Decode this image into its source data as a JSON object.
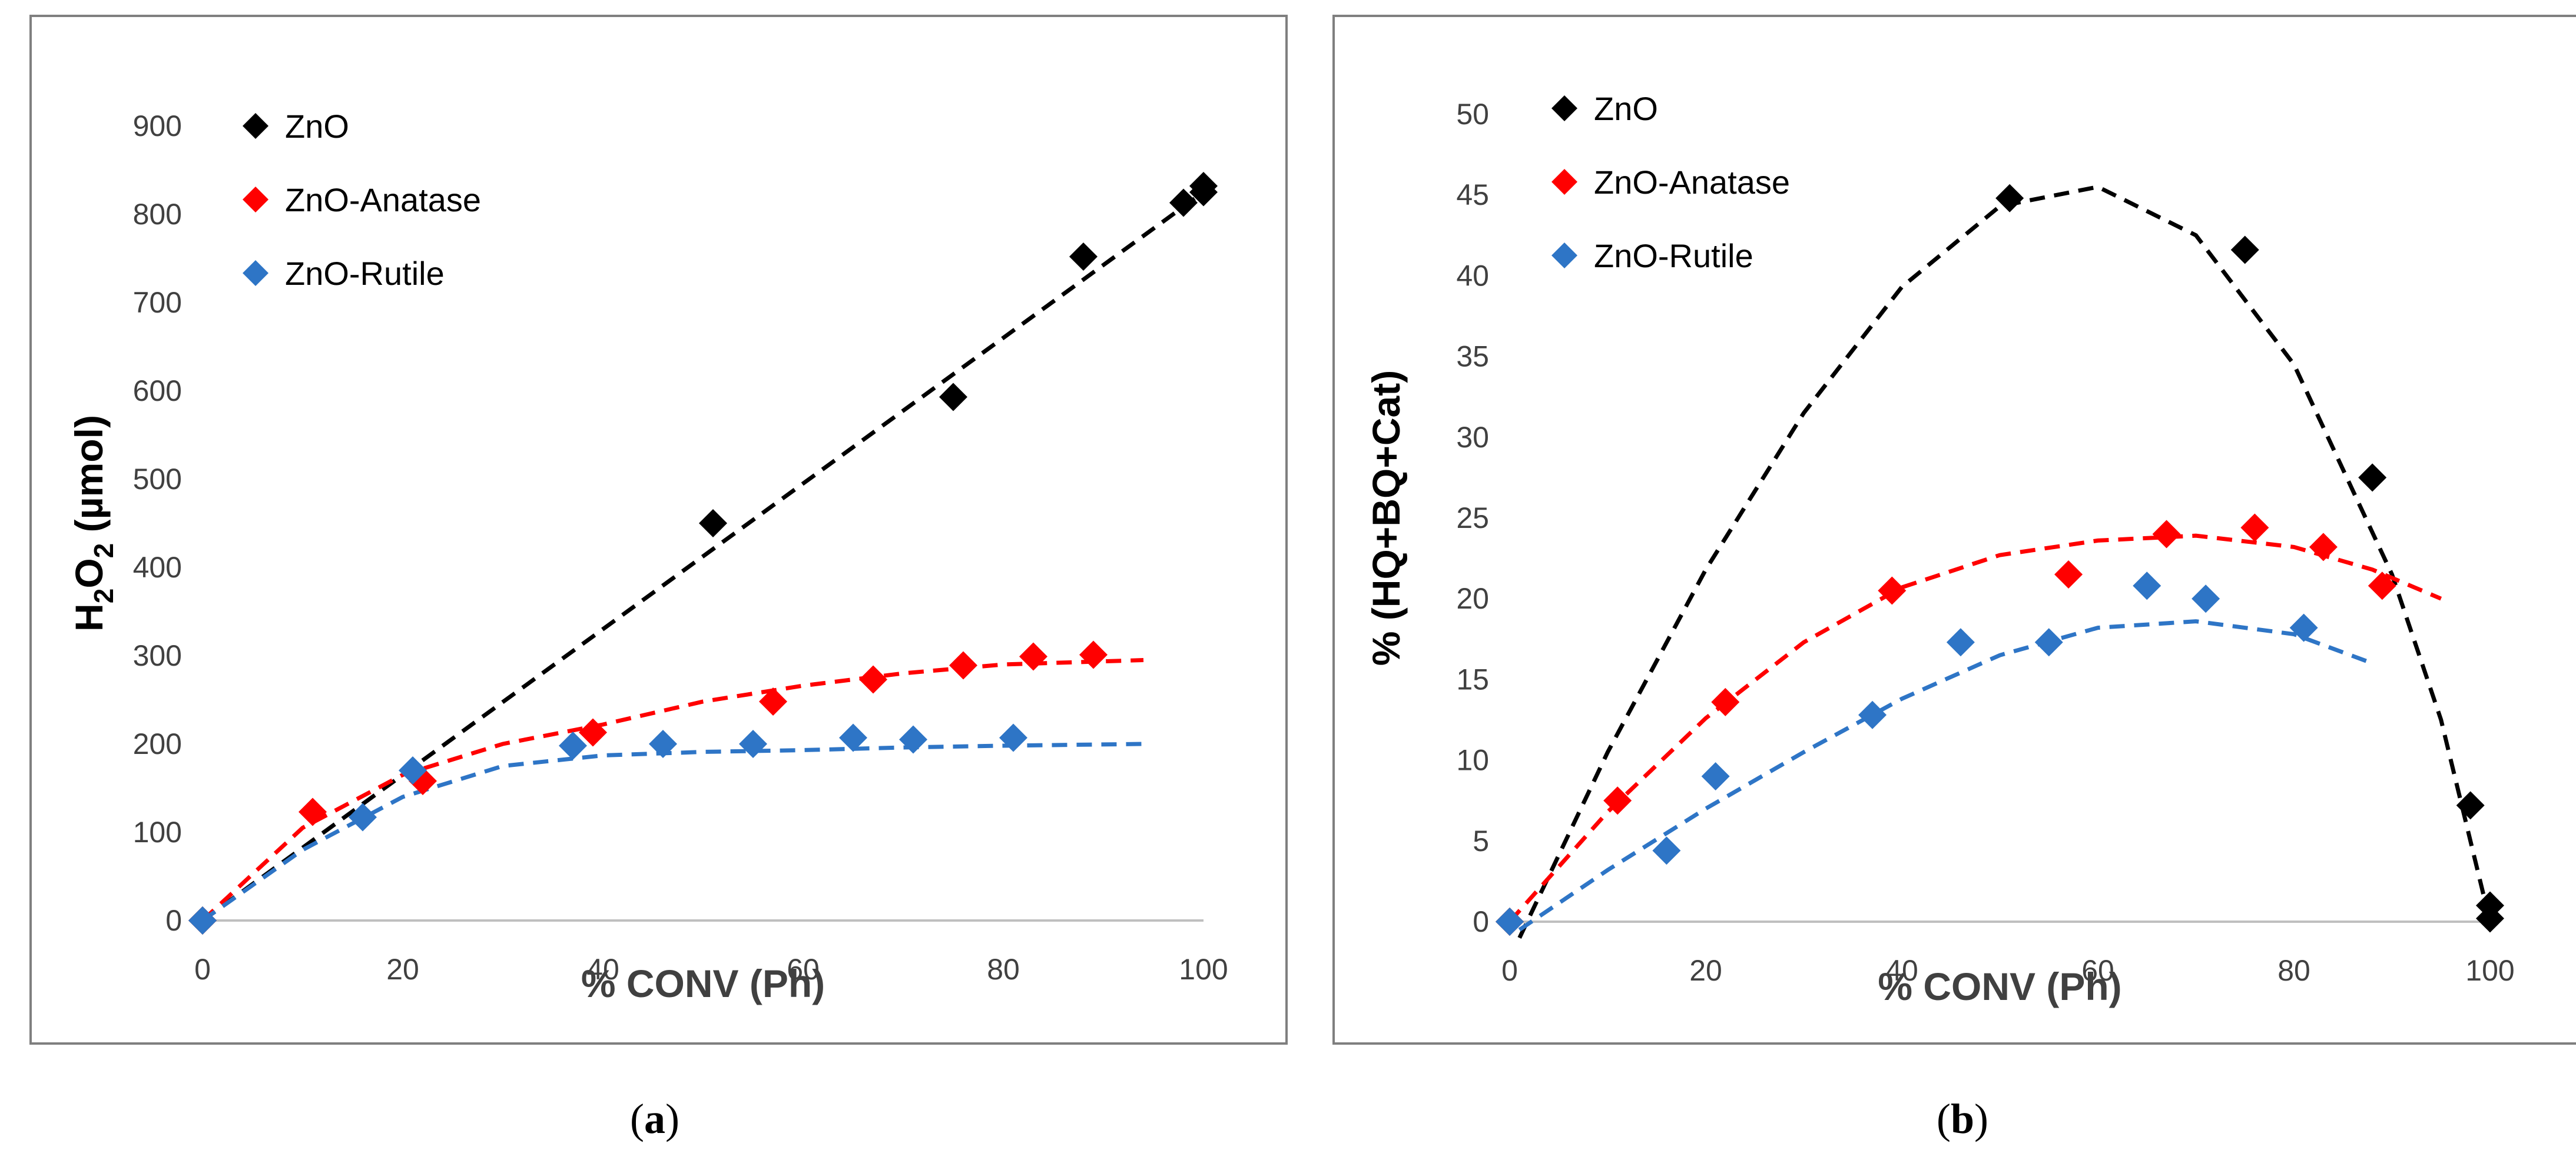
{
  "chart_data": [
    {
      "type": "scatter",
      "panel_label": "a",
      "xlabel": "% CONV (Ph)",
      "ylabel_main": "H",
      "ylabel_sub1": "2",
      "ylabel_mid": "O",
      "ylabel_sub2": "2",
      "ylabel_tail": " (µmol)",
      "xlim": [
        0,
        100
      ],
      "ylim": [
        0,
        900
      ],
      "x_ticks": [
        0,
        20,
        40,
        60,
        80,
        100
      ],
      "y_ticks": [
        0,
        100,
        200,
        300,
        400,
        500,
        600,
        700,
        800,
        900
      ],
      "legend_position": "top-left",
      "grid": false,
      "series": [
        {
          "name": "ZnO",
          "color": "#000000",
          "x": [
            0,
            51,
            75,
            88,
            98,
            100,
            100
          ],
          "y": [
            0,
            450,
            593,
            752,
            813,
            825,
            832
          ],
          "trend": {
            "x": [
              0,
              100
            ],
            "y": [
              0,
              825
            ]
          }
        },
        {
          "name": "ZnO-Anatase",
          "color": "#ff0000",
          "x": [
            0,
            11,
            22,
            39,
            57,
            67,
            76,
            83,
            89
          ],
          "y": [
            0,
            123,
            158,
            213,
            248,
            273,
            289,
            299,
            301
          ],
          "trend": {
            "x": [
              0,
              10,
              20,
              30,
              40,
              50,
              60,
              70,
              80,
              94
            ],
            "y": [
              0,
              105,
              165,
              200,
              222,
              248,
              266,
              280,
              290,
              295
            ]
          }
        },
        {
          "name": "ZnO-Rutile",
          "color": "#2e75c6",
          "x": [
            0,
            16,
            21,
            37,
            46,
            55,
            65,
            71,
            81
          ],
          "y": [
            0,
            117,
            170,
            198,
            200,
            200,
            207,
            205,
            207
          ],
          "trend": {
            "x": [
              0,
              10,
              20,
              30,
              40,
              50,
              60,
              70,
              80,
              94
            ],
            "y": [
              0,
              80,
              140,
              175,
              187,
              191,
              193,
              196,
              198,
              200
            ]
          }
        }
      ]
    },
    {
      "type": "scatter",
      "panel_label": "b",
      "xlabel": "% CONV (Ph)",
      "ylabel": "% (HQ+BQ+Cat)",
      "xlim": [
        0,
        100
      ],
      "ylim": [
        0,
        50
      ],
      "x_ticks": [
        0,
        20,
        40,
        60,
        80,
        100
      ],
      "y_ticks": [
        0,
        5,
        10,
        15,
        20,
        25,
        30,
        35,
        40,
        45,
        50
      ],
      "legend_position": "top-left",
      "grid": false,
      "series": [
        {
          "name": "ZnO",
          "color": "#000000",
          "x": [
            0,
            51,
            75,
            88,
            98,
            100,
            100
          ],
          "y": [
            0,
            44.8,
            41.6,
            27.5,
            7.2,
            1.0,
            0.2
          ],
          "trend": {
            "x": [
              1,
              10,
              20,
              30,
              40,
              50,
              60,
              70,
              80,
              90,
              95,
              100
            ],
            "y": [
              -1,
              10.5,
              21.8,
              31.5,
              39.3,
              44.3,
              45.5,
              42.5,
              34.5,
              21.5,
              12.5,
              0
            ]
          }
        },
        {
          "name": "ZnO-Anatase",
          "color": "#ff0000",
          "x": [
            0,
            11,
            22,
            39,
            57,
            67,
            76,
            83,
            89
          ],
          "y": [
            0,
            7.5,
            13.6,
            20.5,
            21.5,
            24.0,
            24.4,
            23.2,
            20.8
          ],
          "trend": {
            "x": [
              0,
              10,
              20,
              30,
              40,
              50,
              60,
              70,
              80,
              88,
              95
            ],
            "y": [
              0,
              6.8,
              12.6,
              17.3,
              20.7,
              22.7,
              23.6,
              23.9,
              23.2,
              21.8,
              20.0
            ]
          }
        },
        {
          "name": "ZnO-Rutile",
          "color": "#2e75c6",
          "x": [
            0,
            16,
            21,
            37,
            46,
            55,
            65,
            71,
            81
          ],
          "y": [
            0,
            4.4,
            9.0,
            12.8,
            17.3,
            17.3,
            20.8,
            20.0,
            18.2
          ],
          "trend": {
            "x": [
              1,
              10,
              20,
              30,
              40,
              50,
              60,
              70,
              80,
              88
            ],
            "y": [
              -0.5,
              3.2,
              7.0,
              10.5,
              13.8,
              16.5,
              18.2,
              18.6,
              17.8,
              16.0
            ]
          }
        }
      ]
    }
  ],
  "captions": [
    {
      "open": "(",
      "label": "a",
      "close": ")"
    },
    {
      "open": "(",
      "label": "b",
      "close": ")"
    }
  ]
}
